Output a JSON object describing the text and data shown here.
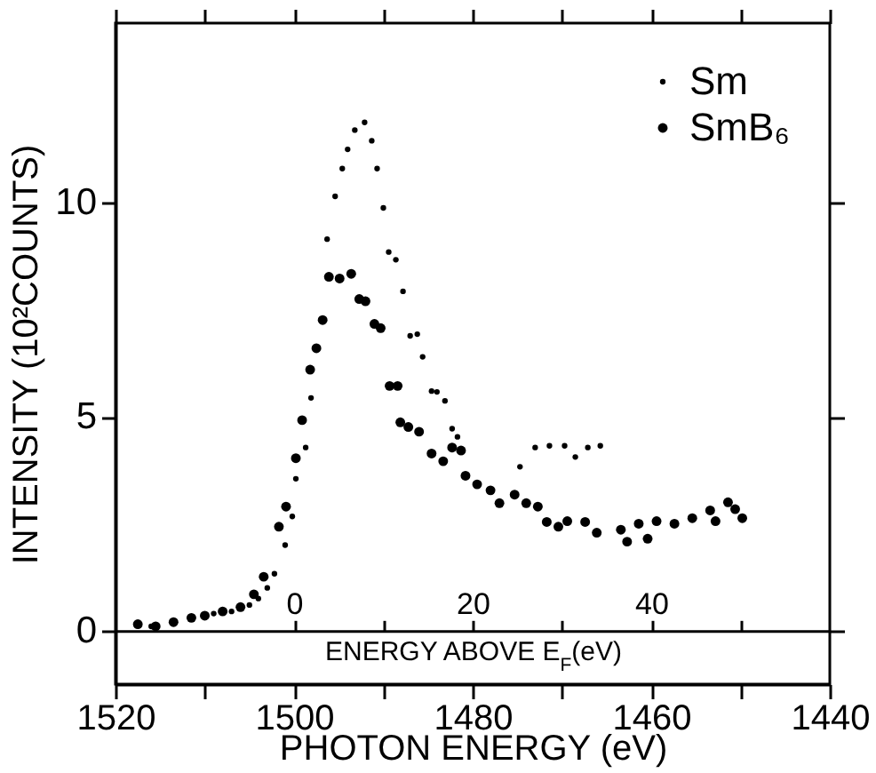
{
  "chart_data": {
    "type": "scatter",
    "xlabel": "PHOTON ENERGY (eV)",
    "ylabel": "INTENSITY (10²COUNTS)",
    "x2label": "ENERGY ABOVE E$_{F}$(eV)",
    "xlim": [
      1520,
      1440
    ],
    "xticks": [
      1520,
      {
        "value": 1510,
        "label": null
      },
      1500,
      {
        "value": 1490,
        "label": null
      },
      1480,
      {
        "value": 1470,
        "label": null
      },
      1460,
      {
        "value": 1450,
        "label": null
      },
      1440
    ],
    "x2lim": [
      -20,
      60
    ],
    "x2ticks": [
      0,
      {
        "value": 10,
        "label": null
      },
      20,
      {
        "value": 30,
        "label": null
      },
      40,
      {
        "value": 50,
        "label": null
      }
    ],
    "ylim": [
      -1.25,
      14.2
    ],
    "yticks": [
      0,
      5,
      10
    ],
    "grid": false,
    "legend": "top right",
    "marker": "circle",
    "series": [
      {
        "name": "Sm",
        "color": "#000000",
        "x": [
          1516,
          1509,
          1507,
          1505,
          1504,
          1503,
          1502.2,
          1501,
          1500.2,
          1499.8,
          1498.7,
          1498.1,
          1496.3,
          1495.4,
          1494.6,
          1494,
          1493.2,
          1492.1,
          1491.3,
          1490.7,
          1490,
          1489.4,
          1488.6,
          1487.8,
          1487,
          1486.2,
          1485.6,
          1484.6,
          1484,
          1483.1,
          1482.3,
          1481.7,
          1474.7,
          1473,
          1471.4,
          1469.7,
          1468.5,
          1467.1,
          1465.7
        ],
        "values": [
          0.1,
          0.4,
          0.45,
          0.6,
          0.75,
          1.0,
          1.33,
          2.0,
          2.67,
          3.55,
          4.28,
          5.44,
          9.15,
          10.15,
          10.8,
          11.25,
          11.7,
          11.88,
          11.45,
          10.8,
          9.88,
          8.85,
          8.67,
          7.93,
          6.89,
          6.93,
          6.4,
          5.6,
          5.58,
          5.37,
          4.72,
          4.53,
          3.83,
          4.28,
          4.32,
          4.32,
          4.06,
          4.28,
          4.32
        ]
      },
      {
        "name": "SmB₆",
        "color": "#000000",
        "x": [
          1517.5,
          1515.5,
          1513.5,
          1511.5,
          1510,
          1508,
          1506,
          1504.5,
          1503.4,
          1501.7,
          1500.9,
          1499.8,
          1499.1,
          1498.2,
          1497.5,
          1496.8,
          1496.1,
          1494.9,
          1493.6,
          1492.7,
          1492,
          1491,
          1490.3,
          1489.3,
          1488.4,
          1488.1,
          1487.2,
          1486,
          1484.6,
          1483.3,
          1482.3,
          1481.3,
          1480.8,
          1479.5,
          1478,
          1477,
          1475.3,
          1474,
          1472.7,
          1471.7,
          1470.4,
          1469.4,
          1467.4,
          1466.1,
          1463.4,
          1462.7,
          1461.4,
          1460.4,
          1459.4,
          1457.4,
          1455.4,
          1453.4,
          1452.8,
          1451.4,
          1450.6,
          1449.8
        ],
        "values": [
          0.15,
          0.1,
          0.2,
          0.3,
          0.35,
          0.45,
          0.55,
          0.85,
          1.26,
          2.43,
          2.9,
          4.03,
          4.92,
          6.1,
          6.6,
          7.26,
          8.27,
          8.23,
          8.34,
          7.75,
          7.7,
          7.17,
          7.07,
          5.72,
          5.72,
          4.87,
          4.76,
          4.65,
          4.14,
          3.96,
          4.28,
          4.21,
          3.62,
          3.42,
          3.28,
          2.98,
          3.18,
          2.98,
          2.9,
          2.54,
          2.43,
          2.56,
          2.54,
          2.29,
          2.36,
          2.08,
          2.5,
          2.15,
          2.56,
          2.5,
          2.63,
          2.81,
          2.56,
          3.0,
          2.84,
          2.63
        ]
      }
    ]
  }
}
